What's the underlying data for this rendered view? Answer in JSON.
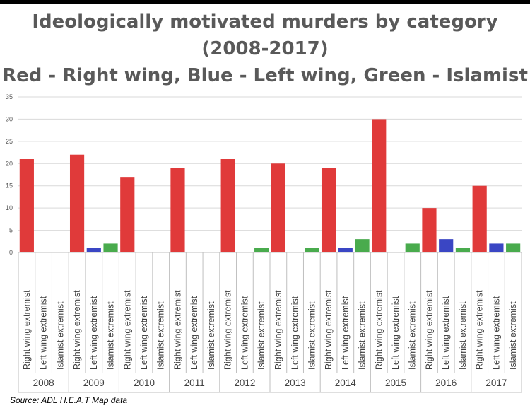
{
  "chart_data": {
    "type": "bar",
    "title": "Ideologically motivated murders by category",
    "subtitle": "(2008-2017)",
    "legend_note": "Red - Right wing, Blue - Left wing, Green - Islamist",
    "source": "Source: ADL H.E.A.T Map data",
    "xlabel": "",
    "ylabel": "",
    "ylim": [
      0,
      35
    ],
    "yticks": [
      0,
      5,
      10,
      15,
      20,
      25,
      30,
      35
    ],
    "grid": true,
    "groups": [
      "2008",
      "2009",
      "2010",
      "2011",
      "2012",
      "2013",
      "2014",
      "2015",
      "2016",
      "2017"
    ],
    "subcategories": [
      "Right wing extremist",
      "Left wing extremist",
      "Islamist extremist"
    ],
    "series": [
      {
        "name": "Right wing extremist",
        "color": "#e03a3a",
        "values": [
          21,
          22,
          17,
          19,
          21,
          20,
          19,
          30,
          10,
          15
        ]
      },
      {
        "name": "Left wing extremist",
        "color": "#3a46c4",
        "values": [
          0,
          1,
          0,
          0,
          0,
          0,
          1,
          0,
          3,
          2
        ]
      },
      {
        "name": "Islamist extremist",
        "color": "#49ab4d",
        "values": [
          0,
          2,
          0,
          0,
          1,
          1,
          3,
          2,
          1,
          2
        ]
      }
    ]
  }
}
